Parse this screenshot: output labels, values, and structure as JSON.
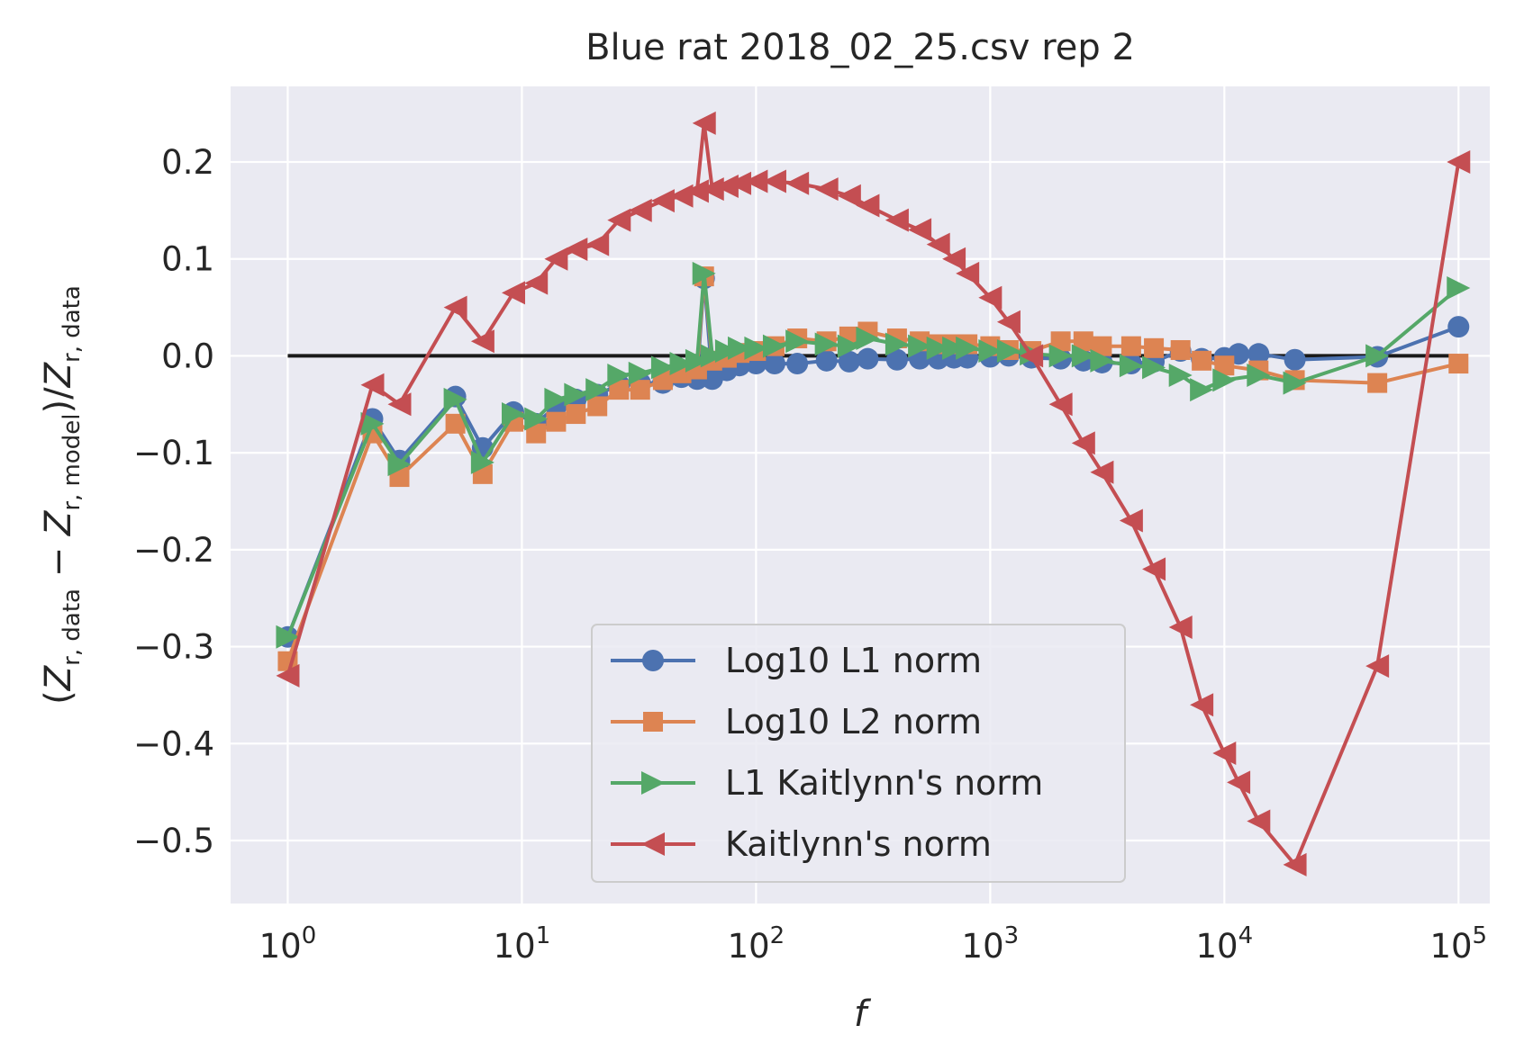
{
  "chart_data": {
    "type": "line",
    "title": "Blue rat 2018_02_25.csv rep 2",
    "xlabel": "f",
    "ylabel": "(Z_{r,data} − Z_{r,model})/Z_{r,data}",
    "ylabel_parts": {
      "open": "(",
      "z1": "Z",
      "sub1": "r, data",
      "minus": " − ",
      "z2": "Z",
      "sub2": "r, model",
      "close": ")/",
      "z3": "Z",
      "sub3": "r, data"
    },
    "xscale": "log",
    "xlim": [
      0.57,
      136000
    ],
    "ylim": [
      -0.565,
      0.278
    ],
    "grid": true,
    "legend_position": "lower center",
    "x_ticks": [
      {
        "value": 1,
        "base": "10",
        "exp": "0"
      },
      {
        "value": 10,
        "base": "10",
        "exp": "1"
      },
      {
        "value": 100,
        "base": "10",
        "exp": "2"
      },
      {
        "value": 1000,
        "base": "10",
        "exp": "3"
      },
      {
        "value": 10000,
        "base": "10",
        "exp": "4"
      },
      {
        "value": 100000,
        "base": "10",
        "exp": "5"
      }
    ],
    "y_ticks": [
      {
        "value": 0.2,
        "label": "0.2"
      },
      {
        "value": 0.1,
        "label": "0.1"
      },
      {
        "value": 0.0,
        "label": "0.0"
      },
      {
        "value": -0.1,
        "label": "−0.1"
      },
      {
        "value": -0.2,
        "label": "−0.2"
      },
      {
        "value": -0.3,
        "label": "−0.3"
      },
      {
        "value": -0.4,
        "label": "−0.4"
      },
      {
        "value": -0.5,
        "label": "−0.5"
      }
    ],
    "reference_line": {
      "x": [
        1,
        100000
      ],
      "y": [
        0,
        0
      ],
      "color": "#1a1a1a"
    },
    "series": [
      {
        "name": "Log10 L1 norm",
        "color": "#4c72b0",
        "marker": "circle",
        "points": [
          [
            1,
            -0.29
          ],
          [
            2.3,
            -0.065
          ],
          [
            3,
            -0.108
          ],
          [
            5.2,
            -0.042
          ],
          [
            6.8,
            -0.095
          ],
          [
            9.2,
            -0.058
          ],
          [
            11.5,
            -0.07
          ],
          [
            14,
            -0.052
          ],
          [
            17,
            -0.045
          ],
          [
            21,
            -0.04
          ],
          [
            26,
            -0.03
          ],
          [
            32,
            -0.028
          ],
          [
            40,
            -0.028
          ],
          [
            48,
            -0.022
          ],
          [
            56,
            -0.024
          ],
          [
            60,
            0.08
          ],
          [
            65,
            -0.024
          ],
          [
            75,
            -0.015
          ],
          [
            85,
            -0.01
          ],
          [
            100,
            -0.008
          ],
          [
            120,
            -0.008
          ],
          [
            150,
            -0.008
          ],
          [
            200,
            -0.005
          ],
          [
            250,
            -0.006
          ],
          [
            300,
            -0.003
          ],
          [
            400,
            -0.004
          ],
          [
            500,
            -0.003
          ],
          [
            600,
            -0.003
          ],
          [
            700,
            -0.002
          ],
          [
            800,
            -0.002
          ],
          [
            1000,
            -0.001
          ],
          [
            1200,
            0.0
          ],
          [
            1500,
            -0.002
          ],
          [
            2000,
            -0.003
          ],
          [
            2500,
            -0.005
          ],
          [
            3000,
            -0.007
          ],
          [
            4000,
            -0.008
          ],
          [
            5000,
            -0.006
          ],
          [
            6500,
            0.005
          ],
          [
            8000,
            -0.003
          ],
          [
            10000,
            -0.002
          ],
          [
            11500,
            0.002
          ],
          [
            14000,
            0.002
          ],
          [
            20000,
            -0.004
          ],
          [
            45000,
            -0.001
          ],
          [
            100000,
            0.03
          ]
        ]
      },
      {
        "name": "Log10 L2 norm",
        "color": "#dd8452",
        "marker": "square",
        "points": [
          [
            1,
            -0.315
          ],
          [
            2.3,
            -0.08
          ],
          [
            3,
            -0.125
          ],
          [
            5.2,
            -0.07
          ],
          [
            6.8,
            -0.122
          ],
          [
            9.2,
            -0.068
          ],
          [
            11.5,
            -0.08
          ],
          [
            14,
            -0.068
          ],
          [
            17,
            -0.06
          ],
          [
            21,
            -0.052
          ],
          [
            26,
            -0.035
          ],
          [
            32,
            -0.035
          ],
          [
            40,
            -0.025
          ],
          [
            48,
            -0.018
          ],
          [
            56,
            -0.014
          ],
          [
            60,
            0.082
          ],
          [
            65,
            -0.005
          ],
          [
            75,
            -0.002
          ],
          [
            85,
            0.003
          ],
          [
            100,
            0.005
          ],
          [
            120,
            0.01
          ],
          [
            150,
            0.018
          ],
          [
            200,
            0.015
          ],
          [
            250,
            0.02
          ],
          [
            300,
            0.025
          ],
          [
            400,
            0.018
          ],
          [
            500,
            0.015
          ],
          [
            600,
            0.012
          ],
          [
            700,
            0.012
          ],
          [
            800,
            0.012
          ],
          [
            1000,
            0.01
          ],
          [
            1200,
            0.006
          ],
          [
            1500,
            0.005
          ],
          [
            2000,
            0.015
          ],
          [
            2500,
            0.015
          ],
          [
            3000,
            0.01
          ],
          [
            4000,
            0.01
          ],
          [
            5000,
            0.008
          ],
          [
            6500,
            0.006
          ],
          [
            8000,
            -0.005
          ],
          [
            10000,
            -0.01
          ],
          [
            14000,
            -0.015
          ],
          [
            20000,
            -0.025
          ],
          [
            45000,
            -0.028
          ],
          [
            100000,
            -0.008
          ]
        ]
      },
      {
        "name": "L1 Kaitlynn's norm",
        "color": "#55a868",
        "marker": "triangle-right",
        "points": [
          [
            1,
            -0.29
          ],
          [
            2.3,
            -0.07
          ],
          [
            3,
            -0.112
          ],
          [
            5.2,
            -0.045
          ],
          [
            6.8,
            -0.11
          ],
          [
            9.2,
            -0.06
          ],
          [
            11.5,
            -0.065
          ],
          [
            14,
            -0.045
          ],
          [
            17,
            -0.04
          ],
          [
            21,
            -0.035
          ],
          [
            26,
            -0.02
          ],
          [
            32,
            -0.018
          ],
          [
            40,
            -0.012
          ],
          [
            48,
            -0.008
          ],
          [
            56,
            -0.005
          ],
          [
            60,
            0.085
          ],
          [
            65,
            0.0
          ],
          [
            75,
            0.005
          ],
          [
            85,
            0.008
          ],
          [
            100,
            0.008
          ],
          [
            120,
            0.01
          ],
          [
            150,
            0.015
          ],
          [
            200,
            0.012
          ],
          [
            250,
            0.01
          ],
          [
            300,
            0.018
          ],
          [
            400,
            0.012
          ],
          [
            500,
            0.01
          ],
          [
            600,
            0.008
          ],
          [
            700,
            0.008
          ],
          [
            800,
            0.008
          ],
          [
            1000,
            0.005
          ],
          [
            1200,
            0.005
          ],
          [
            1500,
            0.002
          ],
          [
            2000,
            0.0
          ],
          [
            2500,
            0.0
          ],
          [
            3000,
            -0.005
          ],
          [
            4000,
            -0.01
          ],
          [
            5000,
            -0.012
          ],
          [
            6500,
            -0.02
          ],
          [
            8000,
            -0.035
          ],
          [
            10000,
            -0.025
          ],
          [
            14000,
            -0.02
          ],
          [
            20000,
            -0.028
          ],
          [
            45000,
            0.0
          ],
          [
            100000,
            0.07
          ]
        ]
      },
      {
        "name": "Kaitlynn's norm",
        "color": "#c44e52",
        "marker": "triangle-left",
        "points": [
          [
            1,
            -0.33
          ],
          [
            2.3,
            -0.03
          ],
          [
            3,
            -0.05
          ],
          [
            5.2,
            0.05
          ],
          [
            6.8,
            0.015
          ],
          [
            9.2,
            0.065
          ],
          [
            11.5,
            0.075
          ],
          [
            14,
            0.1
          ],
          [
            17,
            0.11
          ],
          [
            21,
            0.115
          ],
          [
            26,
            0.14
          ],
          [
            32,
            0.15
          ],
          [
            40,
            0.16
          ],
          [
            48,
            0.165
          ],
          [
            56,
            0.17
          ],
          [
            60,
            0.24
          ],
          [
            65,
            0.172
          ],
          [
            75,
            0.175
          ],
          [
            85,
            0.178
          ],
          [
            100,
            0.18
          ],
          [
            120,
            0.18
          ],
          [
            150,
            0.178
          ],
          [
            200,
            0.172
          ],
          [
            250,
            0.165
          ],
          [
            300,
            0.155
          ],
          [
            400,
            0.14
          ],
          [
            500,
            0.13
          ],
          [
            600,
            0.115
          ],
          [
            700,
            0.1
          ],
          [
            800,
            0.085
          ],
          [
            1000,
            0.06
          ],
          [
            1200,
            0.035
          ],
          [
            1500,
            0.0
          ],
          [
            2000,
            -0.05
          ],
          [
            2500,
            -0.09
          ],
          [
            3000,
            -0.12
          ],
          [
            4000,
            -0.17
          ],
          [
            5000,
            -0.22
          ],
          [
            6500,
            -0.28
          ],
          [
            8000,
            -0.36
          ],
          [
            10000,
            -0.41
          ],
          [
            11500,
            -0.44
          ],
          [
            14000,
            -0.48
          ],
          [
            20000,
            -0.525
          ],
          [
            45000,
            -0.32
          ],
          [
            100000,
            0.2
          ]
        ]
      }
    ]
  }
}
